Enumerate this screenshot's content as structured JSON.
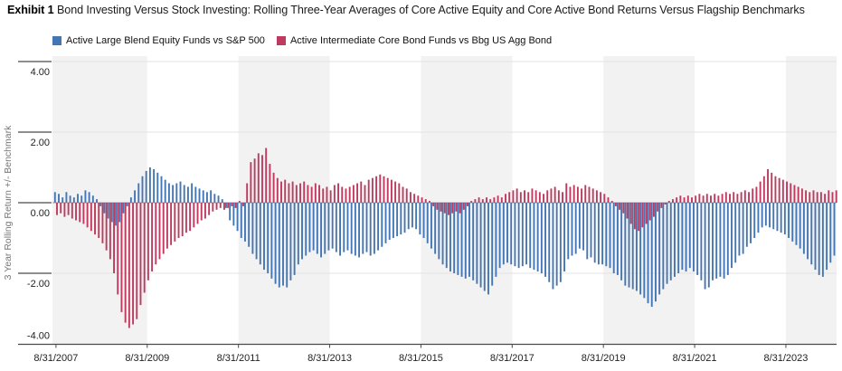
{
  "title": {
    "exhibit": "Exhibit 1",
    "text": " Bond Investing Versus Stock Investing: Rolling Three-Year Averages of Core Active Equity and Core Active Bond Returns Versus Flagship Benchmarks"
  },
  "colors": {
    "equity_blue": "#4576b4",
    "bond_red": "#be3a5e",
    "stripe_gray": "#f2f2f2",
    "gridline_light": "#e3e3e3",
    "zero_line": "#9a9a9a",
    "axis_dark": "#4a4a4a",
    "tick_text": "#222222",
    "axis_title_gray": "#767676"
  },
  "chart_data": {
    "type": "bar",
    "title": "Exhibit 1 Bond Investing Versus Stock Investing: Rolling Three-Year Averages of Core Active Equity and Core Active Bond Returns Versus Flagship Benchmarks",
    "xlabel": "",
    "ylabel": "3 Year Rolling Return +/- Benchmark",
    "ylim": [
      -4.4,
      4.4
    ],
    "y_tick_values": [
      4,
      2,
      0,
      -2,
      -4
    ],
    "y_tick_labels": [
      "4.00",
      "2.00",
      "0.00",
      "-2.00",
      "-4.00"
    ],
    "x_start": "8/31/2007",
    "x_frequency": "monthly",
    "x_tick_labels": [
      "8/31/2007",
      "8/31/2009",
      "8/31/2011",
      "8/31/2013",
      "8/31/2015",
      "8/31/2017",
      "8/31/2019",
      "8/31/2021",
      "8/31/2023"
    ],
    "x_tick_month_index": [
      0,
      24,
      48,
      72,
      96,
      120,
      144,
      168,
      192
    ],
    "grid": "horizontal",
    "legend_position": "top-left",
    "background_bands": "alternating light-gray two-year vertical stripes beginning at each odd-year 8/31 tick",
    "series": [
      {
        "name": "Active Large Blend Equity Funds vs S&P 500",
        "color": "#4576b4",
        "values": [
          0.3,
          0.25,
          0.15,
          0.3,
          0.2,
          0.15,
          0.25,
          0.2,
          0.35,
          0.3,
          0.2,
          0.1,
          -0.1,
          -0.3,
          -0.45,
          -0.55,
          -0.65,
          -0.55,
          -0.3,
          -0.1,
          0.15,
          0.35,
          0.55,
          0.75,
          0.9,
          1.0,
          0.95,
          0.85,
          0.75,
          0.65,
          0.55,
          0.5,
          0.55,
          0.6,
          0.5,
          0.45,
          0.55,
          0.45,
          0.4,
          0.35,
          0.3,
          0.35,
          0.25,
          0.2,
          0.1,
          -0.15,
          -0.5,
          -0.65,
          -0.8,
          -1.0,
          -1.1,
          -1.25,
          -1.45,
          -1.6,
          -1.75,
          -1.9,
          -2.0,
          -2.15,
          -2.3,
          -2.4,
          -2.35,
          -2.4,
          -2.2,
          -2.05,
          -1.75,
          -1.6,
          -1.5,
          -1.4,
          -1.35,
          -1.45,
          -1.55,
          -1.45,
          -1.35,
          -1.3,
          -1.4,
          -1.5,
          -1.4,
          -1.35,
          -1.45,
          -1.5,
          -1.55,
          -1.45,
          -1.4,
          -1.5,
          -1.45,
          -1.35,
          -1.25,
          -1.15,
          -1.05,
          -1.0,
          -0.95,
          -0.9,
          -0.85,
          -0.75,
          -0.7,
          -0.75,
          -0.9,
          -1.0,
          -1.15,
          -1.3,
          -1.45,
          -1.6,
          -1.75,
          -1.85,
          -1.95,
          -2.0,
          -2.05,
          -2.1,
          -2.15,
          -2.1,
          -2.2,
          -2.3,
          -2.4,
          -2.5,
          -2.6,
          -2.35,
          -2.1,
          -1.85,
          -1.75,
          -1.7,
          -1.75,
          -1.8,
          -1.85,
          -1.8,
          -1.75,
          -1.85,
          -1.9,
          -1.95,
          -2.0,
          -2.1,
          -2.25,
          -2.45,
          -2.35,
          -2.25,
          -1.95,
          -1.6,
          -1.5,
          -1.45,
          -1.3,
          -1.35,
          -1.6,
          -1.55,
          -1.7,
          -1.75,
          -1.75,
          -1.8,
          -1.85,
          -2.0,
          -2.05,
          -2.2,
          -2.35,
          -2.4,
          -2.45,
          -2.5,
          -2.6,
          -2.7,
          -2.85,
          -2.95,
          -2.8,
          -2.6,
          -2.45,
          -2.3,
          -2.2,
          -2.1,
          -2.0,
          -1.9,
          -1.95,
          -1.85,
          -1.95,
          -2.05,
          -2.2,
          -2.45,
          -2.4,
          -2.2,
          -2.15,
          -2.1,
          -2.15,
          -2.05,
          -1.85,
          -1.7,
          -1.5,
          -1.45,
          -1.25,
          -1.15,
          -1.0,
          -0.85,
          -0.7,
          -0.65,
          -0.7,
          -0.75,
          -0.8,
          -0.85,
          -0.9,
          -1.0,
          -1.1,
          -1.2,
          -1.3,
          -1.45,
          -1.6,
          -1.75,
          -1.9,
          -2.05,
          -2.1,
          -1.9,
          -1.7,
          -1.5
        ]
      },
      {
        "name": "Active Intermediate Core Bond Funds vs Bbg US Agg Bond",
        "color": "#be3a5e",
        "values": [
          -0.35,
          -0.3,
          -0.4,
          -0.35,
          -0.45,
          -0.5,
          -0.55,
          -0.6,
          -0.7,
          -0.8,
          -0.9,
          -1.0,
          -1.15,
          -1.35,
          -1.6,
          -2.0,
          -2.6,
          -3.1,
          -3.4,
          -3.55,
          -3.45,
          -3.3,
          -2.9,
          -2.55,
          -2.2,
          -1.95,
          -1.75,
          -1.6,
          -1.45,
          -1.3,
          -1.2,
          -1.1,
          -1.0,
          -0.95,
          -0.85,
          -0.8,
          -0.7,
          -0.6,
          -0.5,
          -0.45,
          -0.35,
          -0.25,
          -0.2,
          -0.15,
          -0.2,
          -0.15,
          -0.1,
          -0.15,
          0.05,
          -0.1,
          0.55,
          1.15,
          1.25,
          1.4,
          1.35,
          1.55,
          1.1,
          0.85,
          0.7,
          0.6,
          0.65,
          0.55,
          0.6,
          0.5,
          0.55,
          0.6,
          0.5,
          0.45,
          0.55,
          0.5,
          0.4,
          0.45,
          0.35,
          0.5,
          0.55,
          0.45,
          0.4,
          0.45,
          0.5,
          0.55,
          0.6,
          0.5,
          0.65,
          0.7,
          0.75,
          0.8,
          0.75,
          0.7,
          0.65,
          0.6,
          0.55,
          0.45,
          0.4,
          0.3,
          0.25,
          0.2,
          0.15,
          0.1,
          0.05,
          -0.1,
          -0.2,
          -0.25,
          -0.3,
          -0.35,
          -0.3,
          -0.25,
          -0.3,
          -0.2,
          -0.1,
          0.05,
          0.1,
          0.15,
          0.1,
          0.15,
          0.1,
          0.15,
          0.2,
          0.15,
          0.25,
          0.3,
          0.35,
          0.4,
          0.3,
          0.35,
          0.3,
          0.4,
          0.35,
          0.3,
          0.25,
          0.35,
          0.4,
          0.45,
          0.35,
          0.3,
          0.55,
          0.45,
          0.5,
          0.45,
          0.4,
          0.5,
          0.45,
          0.4,
          0.35,
          0.3,
          0.25,
          0.15,
          0.05,
          -0.1,
          -0.2,
          -0.3,
          -0.45,
          -0.6,
          -0.75,
          -0.8,
          -0.7,
          -0.6,
          -0.5,
          -0.4,
          -0.25,
          -0.15,
          -0.05,
          0.05,
          0.1,
          0.15,
          0.2,
          0.15,
          0.2,
          0.15,
          0.2,
          0.25,
          0.2,
          0.25,
          0.2,
          0.25,
          0.2,
          0.25,
          0.3,
          0.25,
          0.3,
          0.25,
          0.3,
          0.35,
          0.3,
          0.4,
          0.45,
          0.6,
          0.75,
          0.95,
          0.85,
          0.75,
          0.7,
          0.65,
          0.6,
          0.55,
          0.5,
          0.45,
          0.4,
          0.35,
          0.3,
          0.35,
          0.3,
          0.3,
          0.25,
          0.35,
          0.3,
          0.35
        ]
      }
    ]
  }
}
